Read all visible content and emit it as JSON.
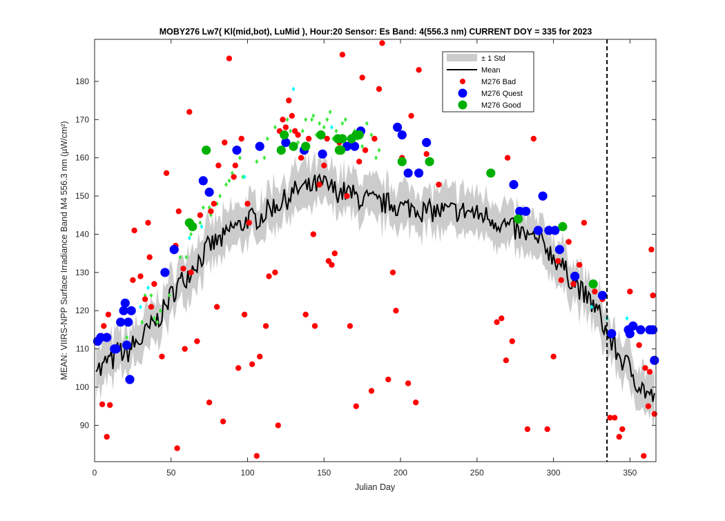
{
  "chart_data": {
    "type": "scatter",
    "title": "MOBY276   Lw7( Kl(mid,bot), LuMid ),   Hour:20 Sensor: Es Band: 4(556.3 nm)   CURRENT DOY = 335 for 2023",
    "xlabel": "Julian Day",
    "ylabel": "MEAN: VIIRS-NPP Surface Irradiance Band M4 556.3 nm (µW/cm²)",
    "xlim": [
      0,
      367
    ],
    "ylim": [
      80.5,
      191
    ],
    "x_ticks": [
      0,
      50,
      100,
      150,
      200,
      250,
      300,
      350
    ],
    "y_ticks": [
      90,
      100,
      110,
      120,
      130,
      140,
      150,
      160,
      170,
      180
    ],
    "current_doy": 335,
    "grid": false,
    "legend_position": "top-right",
    "legend": [
      {
        "label": "± 1 Std",
        "kind": "band",
        "color": "#cccccc"
      },
      {
        "label": "Mean",
        "kind": "line",
        "color": "#000000"
      },
      {
        "label": "M276 Bad",
        "kind": "marker",
        "color": "#ff0000"
      },
      {
        "label": "M276 Quest",
        "kind": "marker",
        "color": "#0000ff"
      },
      {
        "label": "M276 Good",
        "kind": "marker",
        "color": "#00b000"
      }
    ],
    "mean_anchors": [
      [
        1,
        107
      ],
      [
        4,
        104
      ],
      [
        8,
        107
      ],
      [
        12,
        107
      ],
      [
        16,
        110
      ],
      [
        20,
        108
      ],
      [
        25,
        111
      ],
      [
        30,
        112
      ],
      [
        35,
        115
      ],
      [
        40,
        117
      ],
      [
        45,
        120
      ],
      [
        50,
        124
      ],
      [
        55,
        127
      ],
      [
        60,
        129
      ],
      [
        65,
        132
      ],
      [
        70,
        134
      ],
      [
        75,
        137
      ],
      [
        80,
        138
      ],
      [
        85,
        139
      ],
      [
        90,
        142
      ],
      [
        95,
        142
      ],
      [
        100,
        144
      ],
      [
        105,
        144
      ],
      [
        110,
        145
      ],
      [
        115,
        147
      ],
      [
        120,
        148
      ],
      [
        125,
        149
      ],
      [
        130,
        151
      ],
      [
        135,
        152
      ],
      [
        140,
        152
      ],
      [
        145,
        153
      ],
      [
        150,
        153
      ],
      [
        155,
        152
      ],
      [
        160,
        151
      ],
      [
        165,
        151
      ],
      [
        170,
        150
      ],
      [
        175,
        149
      ],
      [
        180,
        149
      ],
      [
        185,
        148
      ],
      [
        190,
        148
      ],
      [
        195,
        148
      ],
      [
        200,
        147
      ],
      [
        205,
        147
      ],
      [
        210,
        147
      ],
      [
        215,
        146
      ],
      [
        220,
        146
      ],
      [
        225,
        146
      ],
      [
        230,
        146
      ],
      [
        235,
        146
      ],
      [
        240,
        146
      ],
      [
        245,
        146
      ],
      [
        250,
        145
      ],
      [
        255,
        145
      ],
      [
        260,
        144
      ],
      [
        265,
        143
      ],
      [
        270,
        142
      ],
      [
        275,
        141
      ],
      [
        280,
        140
      ],
      [
        285,
        139
      ],
      [
        290,
        138
      ],
      [
        295,
        137
      ],
      [
        300,
        134
      ],
      [
        305,
        132
      ],
      [
        310,
        129
      ],
      [
        315,
        127
      ],
      [
        320,
        124
      ],
      [
        325,
        122
      ],
      [
        330,
        119
      ],
      [
        335,
        114
      ],
      [
        340,
        110
      ],
      [
        345,
        107
      ],
      [
        350,
        105
      ],
      [
        355,
        101
      ],
      [
        360,
        99
      ],
      [
        365,
        97
      ]
    ],
    "std_halfwidth": 5.5,
    "series": [
      {
        "name": "M276 Bad",
        "color": "#ff0000",
        "x": [
          5,
          6,
          8,
          9,
          10,
          25,
          26,
          30,
          33,
          35,
          36,
          37,
          39,
          44,
          47,
          53,
          54,
          55,
          58,
          59,
          62,
          63,
          67,
          69,
          75,
          76,
          78,
          80,
          81,
          84,
          85,
          88,
          91,
          92,
          94,
          96,
          98,
          100,
          101,
          103,
          106,
          108,
          112,
          114,
          118,
          120,
          121,
          123,
          125,
          127,
          129,
          131,
          133,
          135,
          138,
          140,
          143,
          144,
          147,
          150,
          152,
          153,
          155,
          157,
          160,
          162,
          165,
          167,
          171,
          173,
          175,
          177,
          181,
          183,
          186,
          188,
          192,
          195,
          197,
          201,
          205,
          207,
          210,
          212,
          217,
          225,
          263,
          266,
          269,
          270,
          273,
          283,
          287,
          296,
          300,
          303,
          305,
          310,
          313,
          317,
          320,
          327,
          332,
          337,
          340,
          343,
          345,
          350,
          356,
          360,
          362,
          364,
          365,
          366,
          363,
          359
        ],
        "y": [
          95.5,
          116,
          87,
          119,
          95.3,
          128,
          141,
          129,
          123,
          143,
          134,
          121,
          127,
          108,
          156,
          137,
          84,
          146,
          131,
          110,
          172,
          130,
          112,
          145,
          96,
          146,
          148,
          121,
          158,
          91,
          164,
          186,
          155,
          158,
          105,
          165,
          119,
          148,
          143,
          106,
          82,
          108,
          116,
          129,
          130,
          90,
          167,
          170,
          168,
          175,
          171,
          167,
          166,
          160,
          119,
          165,
          140,
          116,
          153,
          158,
          165,
          133,
          132,
          135,
          164,
          187,
          150,
          116,
          95,
          159,
          181,
          162,
          99,
          165,
          178,
          190,
          102,
          130,
          120,
          160,
          101,
          171,
          96,
          183,
          161,
          153,
          117,
          118,
          107,
          160,
          112,
          89,
          165,
          89,
          108,
          133,
          128,
          138,
          127,
          132,
          143,
          125,
          123,
          92,
          92,
          87,
          89,
          125,
          111,
          105,
          95,
          136,
          124,
          93,
          104,
          82
        ]
      },
      {
        "name": "M276 Quest",
        "color": "#0000ff",
        "x": [
          2,
          4,
          8,
          13,
          14,
          17,
          19,
          20,
          21,
          22,
          23,
          24,
          46,
          52,
          71,
          75,
          93,
          108,
          125,
          137,
          149,
          165,
          170,
          174,
          198,
          201,
          205,
          212,
          217,
          274,
          278,
          282,
          290,
          293,
          297,
          301,
          304,
          314,
          332,
          338,
          349,
          350,
          352,
          357,
          363,
          365,
          366
        ],
        "y": [
          112,
          113,
          113,
          110,
          110,
          117,
          120,
          122,
          111,
          117,
          102,
          120,
          130,
          136,
          154,
          151,
          162,
          163,
          164,
          162,
          161,
          163,
          163,
          167,
          168,
          166,
          156,
          156,
          164,
          153,
          146,
          146,
          141,
          150,
          141,
          141,
          136,
          129,
          124,
          114,
          115,
          114,
          116,
          115,
          115,
          115,
          107
        ]
      },
      {
        "name": "M276 Good",
        "color": "#00b000",
        "x": [
          62,
          64,
          73,
          122,
          124,
          130,
          138,
          148,
          159,
          160,
          161,
          162,
          168,
          171,
          173,
          201,
          219,
          259,
          277,
          306,
          326
        ],
        "y": [
          143,
          142,
          162,
          162,
          166,
          163,
          163,
          166,
          165,
          162,
          162,
          165,
          165,
          166,
          166,
          159,
          159,
          156,
          144,
          142,
          127
        ]
      },
      {
        "name": "",
        "color": "#3fe83f",
        "x": [
          19,
          21,
          31,
          33,
          37,
          39,
          41,
          43,
          49,
          56,
          60,
          63,
          69,
          71,
          75,
          76,
          80,
          82,
          86,
          88,
          90,
          95,
          97,
          106,
          111,
          113,
          118,
          126,
          128,
          133,
          136,
          138,
          140,
          142,
          143,
          145,
          147,
          150,
          152,
          154,
          156,
          158,
          160,
          162,
          164,
          166,
          168,
          170,
          172,
          175,
          178,
          181,
          184,
          186
        ],
        "y": [
          122,
          113,
          117,
          124,
          124,
          118,
          117,
          120,
          124,
          134,
          134,
          140,
          143,
          147,
          147,
          145,
          148,
          150,
          153,
          154,
          156,
          160,
          155,
          159,
          160,
          165,
          168,
          170,
          167,
          164,
          167,
          170,
          163,
          170,
          171,
          166,
          169,
          168,
          170,
          172,
          165,
          167,
          163,
          169,
          170,
          165,
          164,
          167,
          165,
          163,
          169,
          166,
          160,
          162
        ]
      },
      {
        "name": "",
        "color": "#00ffff",
        "x": [
          30,
          35,
          62,
          70,
          98,
          130,
          155,
          210,
          325,
          335,
          348
        ],
        "y": [
          121,
          126,
          139,
          142,
          155,
          178,
          168,
          156,
          121,
          118,
          118
        ]
      }
    ]
  }
}
